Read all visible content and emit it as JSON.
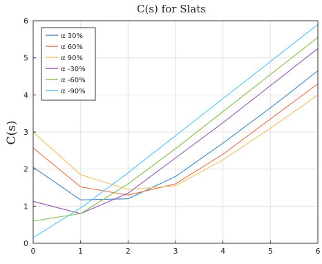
{
  "chart_data": {
    "type": "line",
    "title": "C(s) for Slats",
    "xlabel": "",
    "ylabel": "C(s)",
    "xlim": [
      0,
      6
    ],
    "ylim": [
      0,
      6
    ],
    "xticks": [
      0,
      1,
      2,
      3,
      4,
      5,
      6
    ],
    "yticks": [
      0,
      1,
      2,
      3,
      4,
      5,
      6
    ],
    "grid": true,
    "legend_position": "top-left",
    "x": [
      0,
      1,
      2,
      3,
      4,
      5,
      6
    ],
    "series": [
      {
        "name": "α 30%",
        "color": "#4f8fc8",
        "values": [
          2.05,
          1.17,
          1.2,
          1.8,
          2.7,
          3.65,
          4.65
        ]
      },
      {
        "name": "α 60%",
        "color": "#e07b5c",
        "values": [
          2.57,
          1.52,
          1.3,
          1.6,
          2.4,
          3.35,
          4.3
        ]
      },
      {
        "name": "α 90%",
        "color": "#f2c66e",
        "values": [
          3.0,
          1.85,
          1.45,
          1.55,
          2.25,
          3.1,
          4.0
        ]
      },
      {
        "name": "α -30%",
        "color": "#9b5fb5",
        "values": [
          1.13,
          0.8,
          1.35,
          2.3,
          3.25,
          4.25,
          5.25
        ]
      },
      {
        "name": "α -60%",
        "color": "#8fbf5a",
        "values": [
          0.6,
          0.8,
          1.6,
          2.55,
          3.55,
          4.55,
          5.55
        ]
      },
      {
        "name": "α -90%",
        "color": "#5cc8ee",
        "values": [
          0.15,
          0.95,
          1.9,
          2.9,
          3.9,
          4.9,
          5.9
        ]
      }
    ]
  }
}
